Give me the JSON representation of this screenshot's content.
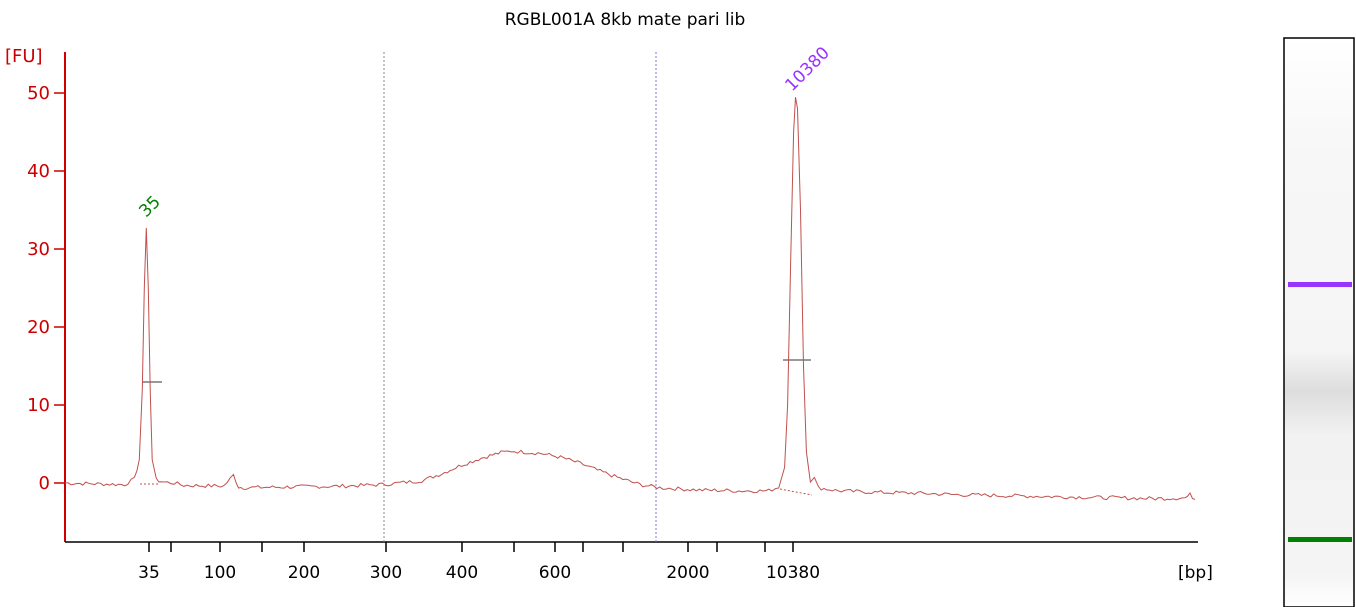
{
  "chart_data": {
    "type": "line",
    "title": "RGBL001A 8kb mate pari lib",
    "ylabel": "[FU]",
    "xlabel": "[bp]",
    "ylim": [
      -8,
      55
    ],
    "y_ticks": [
      "0",
      "10",
      "20",
      "30",
      "40",
      "50"
    ],
    "x_tick_labels": [
      "35",
      "100",
      "200",
      "300",
      "400",
      "600",
      "2000",
      "10380"
    ],
    "x_ticks_unlabeled_count": 6,
    "colors": {
      "axis": "#cc0000",
      "trace": "#c0504d",
      "marker_35": "#008000",
      "marker_10380": "#9933ff",
      "divider_300": "#888888",
      "divider_2000": "#7777dd"
    },
    "peaks": [
      {
        "label": "35",
        "fu": 32.7,
        "color": "#008000"
      },
      {
        "label": "10380",
        "fu": 49.7,
        "color": "#9933ff"
      }
    ],
    "series": [
      {
        "values": [
          [
            0,
            0
          ],
          [
            60,
            -0.2
          ],
          [
            70,
            0.5
          ],
          [
            75,
            3
          ],
          [
            78,
            12
          ],
          [
            80,
            25
          ],
          [
            82,
            32.7
          ],
          [
            84,
            25
          ],
          [
            86,
            12
          ],
          [
            88,
            3
          ],
          [
            92,
            0.4
          ],
          [
            100,
            0.1
          ],
          [
            110,
            0
          ],
          [
            120,
            -0.3
          ],
          [
            160,
            -0.4
          ],
          [
            170,
            1.0
          ],
          [
            175,
            -0.5
          ],
          [
            180,
            -0.6
          ],
          [
            230,
            -0.5
          ],
          [
            280,
            -0.4
          ],
          [
            320,
            -0.2
          ],
          [
            360,
            0.3
          ],
          [
            380,
            1.2
          ],
          [
            400,
            2.3
          ],
          [
            420,
            3.2
          ],
          [
            440,
            3.9
          ],
          [
            450,
            4.1
          ],
          [
            460,
            4.0
          ],
          [
            480,
            3.8
          ],
          [
            500,
            3.3
          ],
          [
            520,
            2.5
          ],
          [
            540,
            1.5
          ],
          [
            560,
            0.6
          ],
          [
            580,
            -0.2
          ],
          [
            600,
            -0.6
          ],
          [
            640,
            -0.9
          ],
          [
            680,
            -1.0
          ],
          [
            710,
            -1.0
          ],
          [
            720,
            -0.5
          ],
          [
            726,
            2
          ],
          [
            729,
            10
          ],
          [
            732,
            28
          ],
          [
            735,
            45
          ],
          [
            737,
            49.7
          ],
          [
            739,
            48
          ],
          [
            742,
            35
          ],
          [
            745,
            15
          ],
          [
            748,
            4
          ],
          [
            752,
            0.3
          ],
          [
            756,
            0.6
          ],
          [
            760,
            -0.6
          ],
          [
            780,
            -1.0
          ],
          [
            820,
            -1.2
          ],
          [
            860,
            -1.3
          ],
          [
            900,
            -1.5
          ],
          [
            940,
            -1.6
          ],
          [
            980,
            -1.7
          ],
          [
            1020,
            -1.8
          ],
          [
            1060,
            -1.9
          ],
          [
            1100,
            -2.0
          ],
          [
            1130,
            -1.9
          ],
          [
            1135,
            -1.5
          ],
          [
            1140,
            -2.1
          ]
        ]
      }
    ]
  }
}
